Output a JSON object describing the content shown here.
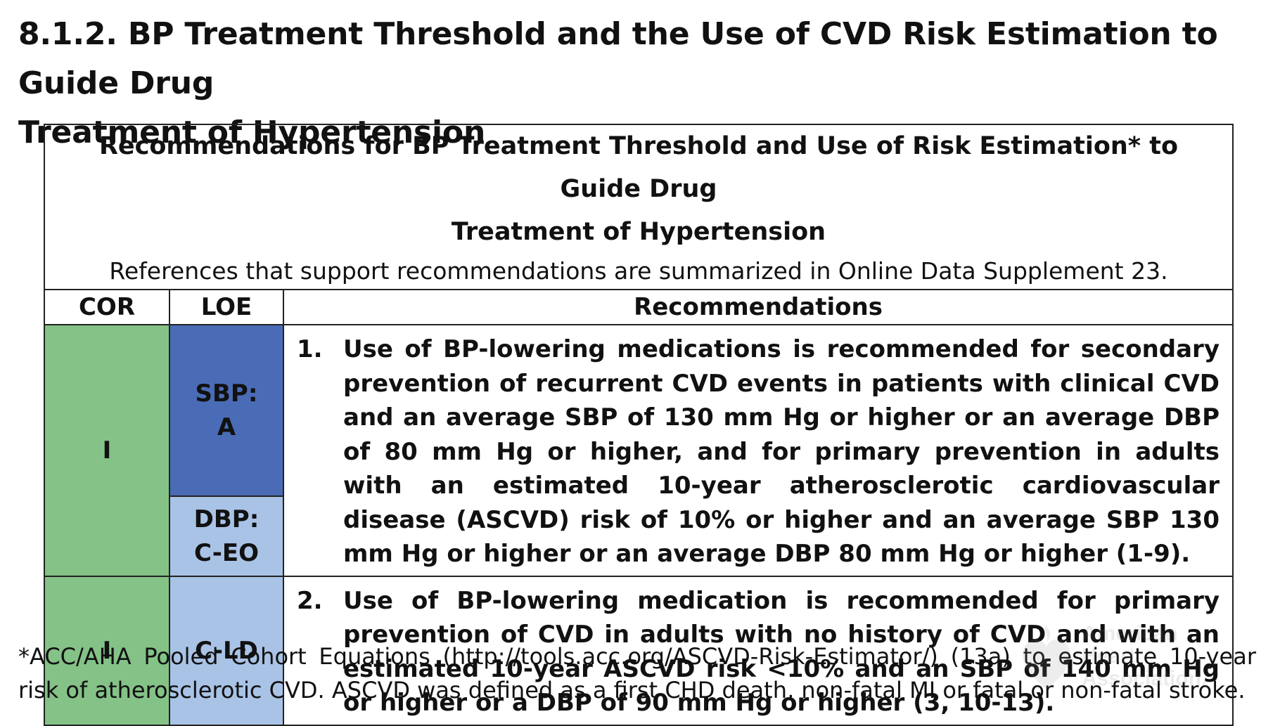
{
  "heading": {
    "line1": "8.1.2. BP Treatment Threshold and the Use of CVD Risk Estimation to Guide Drug",
    "line2": "Treatment of Hypertension"
  },
  "table": {
    "title_line1": "Recommendations for BP Treatment Threshold and Use of Risk Estimation* to Guide Drug",
    "title_line2": "Treatment of Hypertension",
    "references": "References that support recommendations are summarized in Online Data Supplement 23.",
    "columns": {
      "cor": "COR",
      "loe": "LOE",
      "recommendations": "Recommendations"
    },
    "rows": [
      {
        "cor": "I",
        "loe_a_line1": "SBP:",
        "loe_a_line2": "A",
        "loe_b_line1": "DBP:",
        "loe_b_line2": "C-EO",
        "number": "1.",
        "text": "Use of BP-lowering medications is recommended for secondary prevention of recurrent CVD events in patients with clinical CVD and an average SBP of 130 mm Hg or higher or an average DBP of 80 mm Hg or higher, and for primary prevention in adults with an estimated 10-year atherosclerotic cardiovascular disease (ASCVD) risk of 10% or higher and an average SBP 130 mm Hg or higher or an average DBP 80 mm Hg or higher (1-9)."
      },
      {
        "cor": "I",
        "loe": "C-LD",
        "number": "2.",
        "text": "Use of BP-lowering medication is recommended for primary prevention of CVD in adults with no history of CVD and with an estimated 10-year ASCVD risk <10% and an SBP of 140 mm Hg or higher or a DBP of 90 mm Hg or higher (3, 10-13)."
      }
    ]
  },
  "footnote": "*ACC/AHA Pooled Cohort Equations (http://tools.acc.org/ASCVD-Risk-Estimator/) (13a) to estimate 10-year risk of atherosclerotic CVD. ASCVD was defined as a first CHD death, non-fatal MI or fatal or non-fatal stroke.",
  "watermark": {
    "line1": "American",
    "line2": "Heart",
    "line3": "Association."
  },
  "colors": {
    "cor_green": "#84c287",
    "loe_a_blue": "#4a6cb6",
    "loe_c_light_blue": "#a9c3e6"
  }
}
